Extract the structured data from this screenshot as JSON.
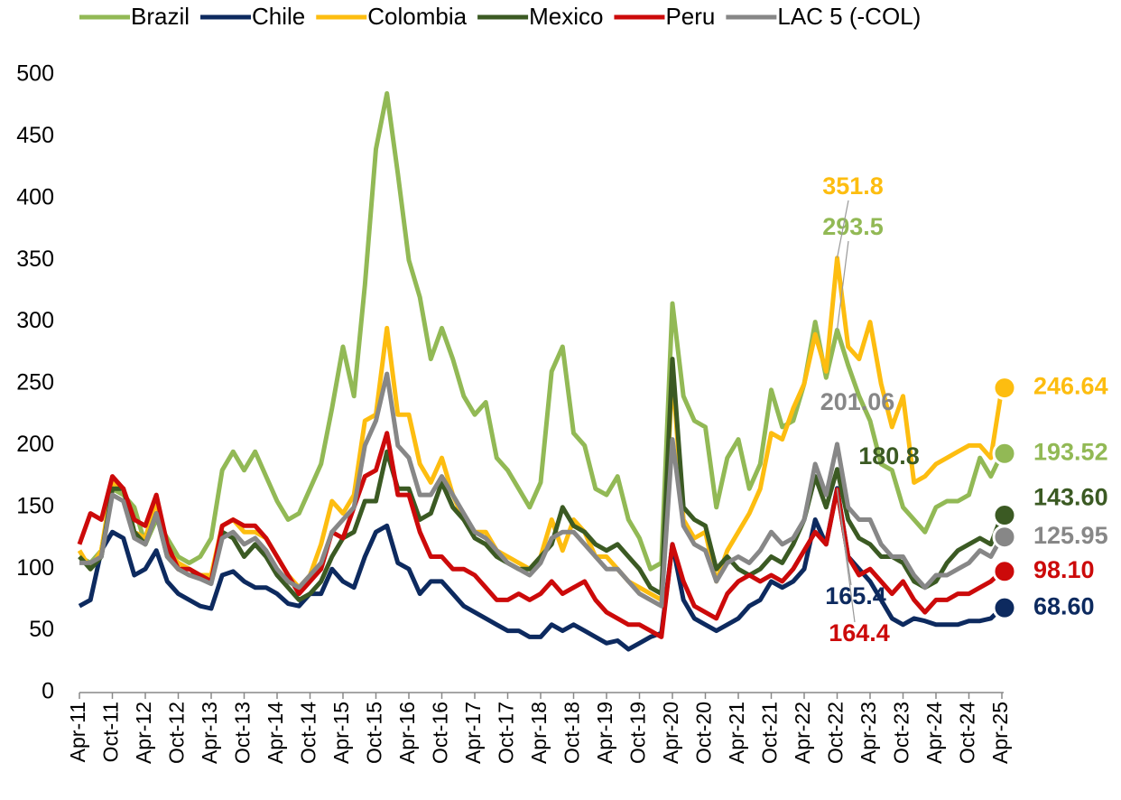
{
  "chart_data": {
    "type": "line",
    "categories": [
      "Apr-11",
      null,
      null,
      "Oct-11",
      null,
      null,
      "Apr-12",
      null,
      null,
      "Oct-12",
      null,
      null,
      "Apr-13",
      null,
      null,
      "Oct-13",
      null,
      null,
      "Apr-14",
      null,
      null,
      "Oct-14",
      null,
      null,
      "Apr-15",
      null,
      null,
      "Oct-15",
      null,
      null,
      "Apr-16",
      null,
      null,
      "Oct-16",
      null,
      null,
      "Apr-17",
      null,
      null,
      "Oct-17",
      null,
      null,
      "Apr-18",
      null,
      null,
      "Oct-18",
      null,
      null,
      "Apr-19",
      null,
      null,
      "Oct-19",
      null,
      null,
      "Apr-20",
      null,
      null,
      "Oct-20",
      null,
      null,
      "Apr-21",
      null,
      null,
      "Oct-21",
      null,
      null,
      "Apr-22",
      null,
      null,
      "Oct-22",
      null,
      null,
      "Apr-23",
      null,
      null,
      "Oct-23",
      null,
      null,
      "Apr-24",
      null,
      null,
      "Oct-24",
      null,
      null,
      "Apr-25"
    ],
    "ylim": [
      0,
      500
    ],
    "yticks": [
      0,
      50,
      100,
      150,
      200,
      250,
      300,
      350,
      400,
      450,
      500
    ],
    "grid": false,
    "legend": "top",
    "series": [
      {
        "name": "Brazil",
        "color": "#92b955",
        "values": [
          110,
          105,
          115,
          165,
          160,
          150,
          120,
          140,
          125,
          110,
          105,
          110,
          125,
          180,
          195,
          180,
          195,
          175,
          155,
          140,
          145,
          165,
          185,
          230,
          280,
          240,
          330,
          440,
          485,
          420,
          350,
          320,
          270,
          295,
          270,
          240,
          225,
          235,
          190,
          180,
          165,
          150,
          170,
          260,
          280,
          210,
          200,
          165,
          160,
          175,
          140,
          125,
          100,
          105,
          315,
          240,
          220,
          215,
          150,
          190,
          205,
          165,
          185,
          245,
          215,
          220,
          250,
          300,
          255,
          293.5,
          265,
          240,
          220,
          185,
          180,
          150,
          140,
          130,
          150,
          155,
          155,
          160,
          190,
          175,
          193.52
        ],
        "annotations": [
          {
            "label": "293.5",
            "value": 293.5
          },
          {
            "label": "193.52",
            "value": 193.52
          }
        ]
      },
      {
        "name": "Chile",
        "color": "#0d2a5f",
        "values": [
          70,
          75,
          115,
          130,
          125,
          95,
          100,
          115,
          90,
          80,
          75,
          70,
          68,
          95,
          98,
          90,
          85,
          85,
          80,
          72,
          70,
          80,
          80,
          100,
          90,
          85,
          110,
          130,
          135,
          105,
          100,
          80,
          90,
          90,
          80,
          70,
          65,
          60,
          55,
          50,
          50,
          45,
          45,
          55,
          50,
          55,
          50,
          45,
          40,
          42,
          35,
          40,
          45,
          48,
          120,
          75,
          60,
          55,
          50,
          55,
          60,
          70,
          75,
          90,
          85,
          90,
          100,
          140,
          120,
          165.4,
          110,
          100,
          90,
          75,
          60,
          55,
          60,
          58,
          55,
          55,
          55,
          58,
          58,
          60,
          68.6
        ],
        "annotations": [
          {
            "label": "165.4",
            "value": 165.4
          },
          {
            "label": "68.60",
            "value": 68.6
          }
        ]
      },
      {
        "name": "Colombia",
        "color": "#fdbd10",
        "values": [
          115,
          100,
          115,
          170,
          165,
          130,
          125,
          155,
          115,
          105,
          100,
          95,
          95,
          135,
          140,
          130,
          130,
          125,
          110,
          95,
          85,
          95,
          120,
          155,
          145,
          160,
          220,
          225,
          295,
          225,
          225,
          185,
          170,
          190,
          160,
          140,
          130,
          130,
          115,
          110,
          105,
          100,
          110,
          140,
          115,
          140,
          130,
          110,
          110,
          100,
          90,
          85,
          80,
          75,
          260,
          140,
          125,
          130,
          90,
          115,
          130,
          145,
          165,
          210,
          205,
          230,
          250,
          290,
          260,
          351.8,
          280,
          270,
          300,
          250,
          215,
          240,
          170,
          175,
          185,
          190,
          195,
          200,
          200,
          190,
          246.64
        ],
        "annotations": [
          {
            "label": "351.8",
            "value": 351.8
          },
          {
            "label": "246.64",
            "value": 246.64
          }
        ]
      },
      {
        "name": "Mexico",
        "color": "#3b5a23",
        "values": [
          110,
          100,
          110,
          165,
          165,
          130,
          120,
          145,
          110,
          100,
          95,
          95,
          90,
          130,
          125,
          110,
          120,
          110,
          95,
          85,
          75,
          80,
          90,
          110,
          125,
          130,
          155,
          155,
          195,
          165,
          165,
          140,
          145,
          170,
          150,
          140,
          125,
          120,
          110,
          105,
          100,
          100,
          110,
          120,
          150,
          135,
          130,
          120,
          115,
          120,
          110,
          100,
          85,
          80,
          270,
          150,
          140,
          135,
          100,
          110,
          100,
          95,
          100,
          110,
          105,
          120,
          140,
          175,
          150,
          180.8,
          140,
          125,
          120,
          110,
          110,
          105,
          90,
          85,
          90,
          105,
          115,
          120,
          125,
          120,
          143.6
        ],
        "annotations": [
          {
            "label": "180.8",
            "value": 180.8
          },
          {
            "label": "143.60",
            "value": 143.6
          }
        ]
      },
      {
        "name": "Peru",
        "color": "#cc0a0a",
        "values": [
          120,
          145,
          140,
          175,
          165,
          140,
          135,
          160,
          120,
          100,
          100,
          95,
          90,
          135,
          140,
          135,
          135,
          125,
          110,
          95,
          80,
          90,
          100,
          130,
          125,
          150,
          175,
          180,
          210,
          160,
          160,
          130,
          110,
          110,
          100,
          100,
          95,
          85,
          75,
          75,
          80,
          75,
          80,
          90,
          80,
          85,
          90,
          75,
          65,
          60,
          55,
          55,
          50,
          45,
          120,
          90,
          70,
          65,
          60,
          80,
          90,
          95,
          90,
          95,
          90,
          100,
          115,
          130,
          120,
          164.4,
          110,
          95,
          100,
          90,
          80,
          90,
          75,
          65,
          75,
          75,
          80,
          80,
          85,
          90,
          98.1
        ],
        "annotations": [
          {
            "label": "164.4",
            "value": 164.4
          },
          {
            "label": "98.10",
            "value": 98.1
          }
        ]
      },
      {
        "name": "LAC 5 (-COL)",
        "color": "#878787",
        "values": [
          105,
          105,
          110,
          160,
          155,
          125,
          120,
          145,
          110,
          100,
          95,
          92,
          88,
          125,
          130,
          120,
          125,
          115,
          100,
          90,
          85,
          95,
          105,
          130,
          140,
          150,
          200,
          220,
          258,
          200,
          190,
          160,
          160,
          175,
          160,
          145,
          130,
          125,
          115,
          105,
          100,
          95,
          105,
          125,
          130,
          130,
          120,
          110,
          100,
          100,
          90,
          80,
          75,
          70,
          205,
          135,
          120,
          115,
          90,
          105,
          110,
          105,
          115,
          130,
          120,
          125,
          140,
          185,
          160,
          201.06,
          150,
          140,
          140,
          120,
          110,
          110,
          95,
          85,
          95,
          95,
          100,
          105,
          115,
          110,
          125.95
        ],
        "annotations": [
          {
            "label": "201.06",
            "value": 201.06
          },
          {
            "label": "125.95",
            "value": 125.95
          }
        ]
      }
    ]
  }
}
